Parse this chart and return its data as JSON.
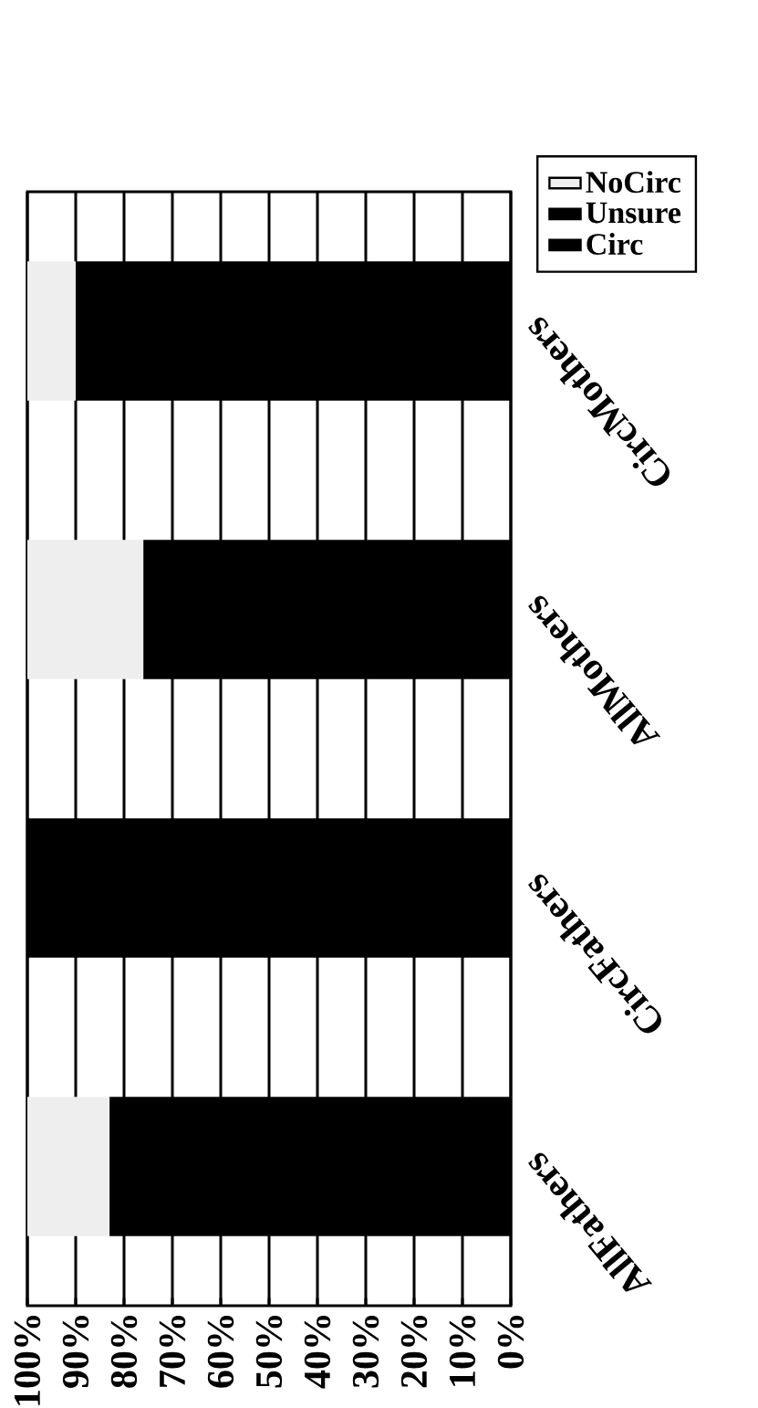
{
  "chart_data": {
    "type": "bar",
    "stacked": true,
    "orientation": "horizontal",
    "categories": [
      "CircMothers",
      "AllMothers",
      "CircFathers",
      "AllFathers"
    ],
    "series": [
      {
        "name": "Circ",
        "color": "#000000",
        "values": [
          90,
          76,
          100,
          83
        ]
      },
      {
        "name": "Unsure",
        "color": "#000000",
        "values": [
          0,
          0,
          0,
          0
        ]
      },
      {
        "name": "NoCirc",
        "color": "#eeeeee",
        "values": [
          10,
          24,
          0,
          17
        ]
      }
    ],
    "xlim": [
      100,
      0
    ],
    "xticks": [
      {
        "value": 0,
        "label": "0%"
      },
      {
        "value": 10,
        "label": "10%"
      },
      {
        "value": 20,
        "label": "20%"
      },
      {
        "value": 30,
        "label": "30%"
      },
      {
        "value": 40,
        "label": "40%"
      },
      {
        "value": 50,
        "label": "50%"
      },
      {
        "value": 60,
        "label": "60%"
      },
      {
        "value": 70,
        "label": "70%"
      },
      {
        "value": 80,
        "label": "80%"
      },
      {
        "value": 90,
        "label": "90%"
      },
      {
        "value": 100,
        "label": "100%"
      }
    ],
    "grid": "x",
    "legend": "top right"
  }
}
